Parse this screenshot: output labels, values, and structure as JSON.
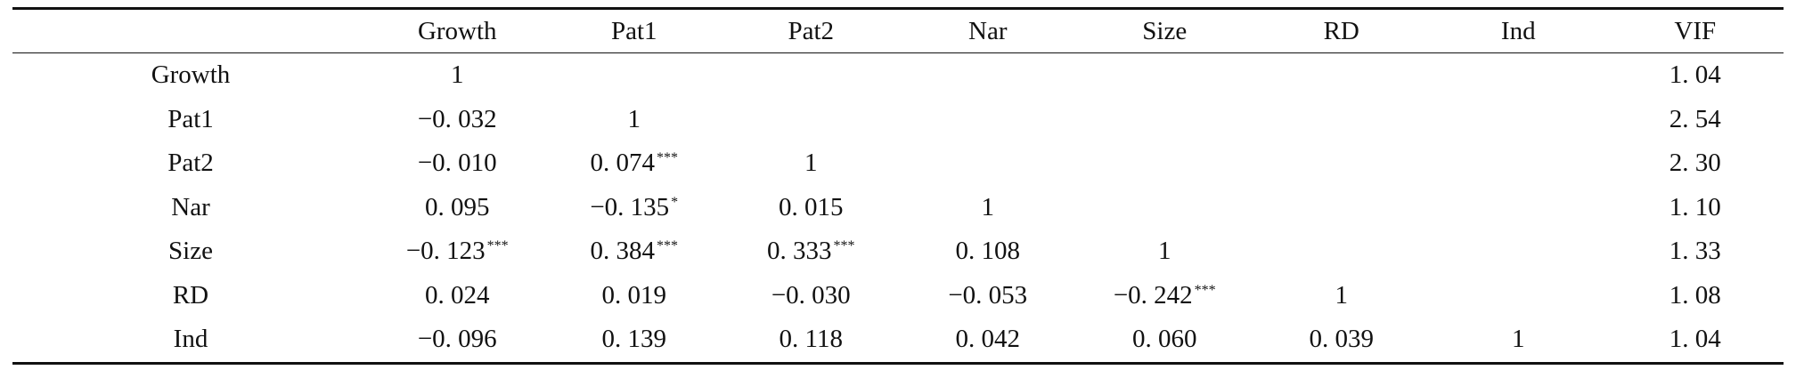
{
  "table": {
    "columns": [
      "",
      "Growth",
      "Pat1",
      "Pat2",
      "Nar",
      "Size",
      "RD",
      "Ind",
      "VIF"
    ],
    "rows": [
      {
        "label": "Growth",
        "cells": [
          {
            "v": "1",
            "s": ""
          },
          {
            "v": "",
            "s": ""
          },
          {
            "v": "",
            "s": ""
          },
          {
            "v": "",
            "s": ""
          },
          {
            "v": "",
            "s": ""
          },
          {
            "v": "",
            "s": ""
          },
          {
            "v": "",
            "s": ""
          },
          {
            "v": "1. 04",
            "s": ""
          }
        ]
      },
      {
        "label": "Pat1",
        "cells": [
          {
            "v": "−0. 032",
            "s": ""
          },
          {
            "v": "1",
            "s": ""
          },
          {
            "v": "",
            "s": ""
          },
          {
            "v": "",
            "s": ""
          },
          {
            "v": "",
            "s": ""
          },
          {
            "v": "",
            "s": ""
          },
          {
            "v": "",
            "s": ""
          },
          {
            "v": "2. 54",
            "s": ""
          }
        ]
      },
      {
        "label": "Pat2",
        "cells": [
          {
            "v": "−0. 010",
            "s": ""
          },
          {
            "v": "0. 074",
            "s": "***"
          },
          {
            "v": "1",
            "s": ""
          },
          {
            "v": "",
            "s": ""
          },
          {
            "v": "",
            "s": ""
          },
          {
            "v": "",
            "s": ""
          },
          {
            "v": "",
            "s": ""
          },
          {
            "v": "2. 30",
            "s": ""
          }
        ]
      },
      {
        "label": "Nar",
        "cells": [
          {
            "v": "0. 095",
            "s": ""
          },
          {
            "v": "−0. 135",
            "s": "*"
          },
          {
            "v": "0. 015",
            "s": ""
          },
          {
            "v": "1",
            "s": ""
          },
          {
            "v": "",
            "s": ""
          },
          {
            "v": "",
            "s": ""
          },
          {
            "v": "",
            "s": ""
          },
          {
            "v": "1. 10",
            "s": ""
          }
        ]
      },
      {
        "label": "Size",
        "cells": [
          {
            "v": "−0. 123",
            "s": "***"
          },
          {
            "v": "0. 384",
            "s": "***"
          },
          {
            "v": "0. 333",
            "s": "***"
          },
          {
            "v": "0. 108",
            "s": ""
          },
          {
            "v": "1",
            "s": ""
          },
          {
            "v": "",
            "s": ""
          },
          {
            "v": "",
            "s": ""
          },
          {
            "v": "1. 33",
            "s": ""
          }
        ]
      },
      {
        "label": "RD",
        "cells": [
          {
            "v": "0. 024",
            "s": ""
          },
          {
            "v": "0. 019",
            "s": ""
          },
          {
            "v": "−0. 030",
            "s": ""
          },
          {
            "v": "−0. 053",
            "s": ""
          },
          {
            "v": "−0. 242",
            "s": "***"
          },
          {
            "v": "1",
            "s": ""
          },
          {
            "v": "",
            "s": ""
          },
          {
            "v": "1. 08",
            "s": ""
          }
        ]
      },
      {
        "label": "Ind",
        "cells": [
          {
            "v": "−0. 096",
            "s": ""
          },
          {
            "v": "0. 139",
            "s": ""
          },
          {
            "v": "0. 118",
            "s": ""
          },
          {
            "v": "0. 042",
            "s": ""
          },
          {
            "v": "0. 060",
            "s": ""
          },
          {
            "v": "0. 039",
            "s": ""
          },
          {
            "v": "1",
            "s": ""
          },
          {
            "v": "1. 04",
            "s": ""
          }
        ]
      }
    ]
  }
}
